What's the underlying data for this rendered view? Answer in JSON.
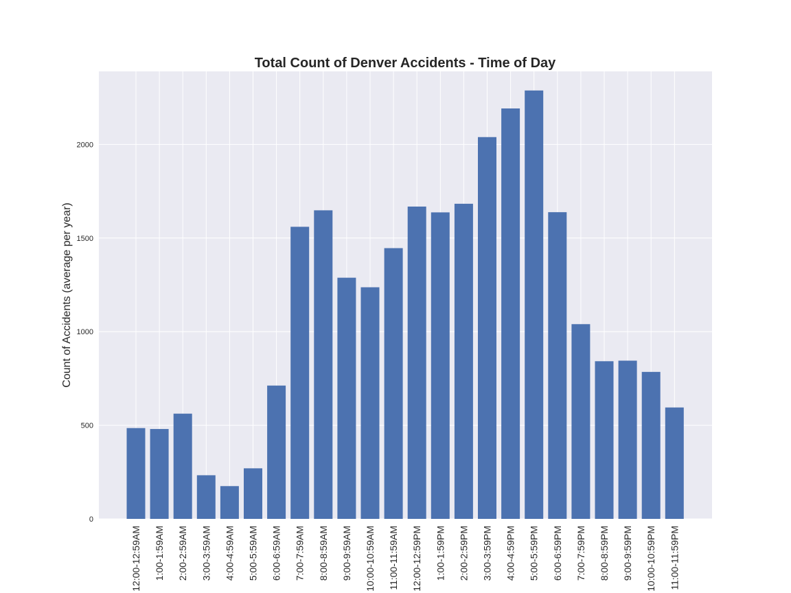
{
  "chart_data": {
    "type": "bar",
    "title": "Total Count of Denver Accidents - Time of Day",
    "xlabel": "",
    "ylabel": "Count of Accidents (average per year)",
    "ylim": [
      0,
      2390
    ],
    "yticks": [
      0,
      500,
      1000,
      1500,
      2000
    ],
    "ytick_labels": [
      "0",
      "500",
      "1000",
      "1500",
      "2000"
    ],
    "grid": true,
    "categories": [
      "12:00-12:59AM",
      "1:00-1:59AM",
      "2:00-2:59AM",
      "3:00-3:59AM",
      "4:00-4:59AM",
      "5:00-5:59AM",
      "6:00-6:59AM",
      "7:00-7:59AM",
      "8:00-8:59AM",
      "9:00-9:59AM",
      "10:00-10:59AM",
      "11:00-11:59AM",
      "12:00-12:59PM",
      "1:00-1:59PM",
      "2:00-2:59PM",
      "3:00-3:59PM",
      "4:00-4:59PM",
      "5:00-5:59PM",
      "6:00-6:59PM",
      "7:00-7:59PM",
      "8:00-8:59PM",
      "9:00-9:59PM",
      "10:00-10:59PM",
      "11:00-11:59PM"
    ],
    "values": [
      485,
      480,
      562,
      233,
      175,
      270,
      712,
      1560,
      1648,
      1288,
      1237,
      1446,
      1668,
      1637,
      1683,
      2039,
      2192,
      2288,
      1638,
      1040,
      842,
      845,
      785,
      595
    ],
    "bar_color": "#4c72b0",
    "plot_background": "#eaeaf2",
    "grid_color": "#ffffff"
  }
}
